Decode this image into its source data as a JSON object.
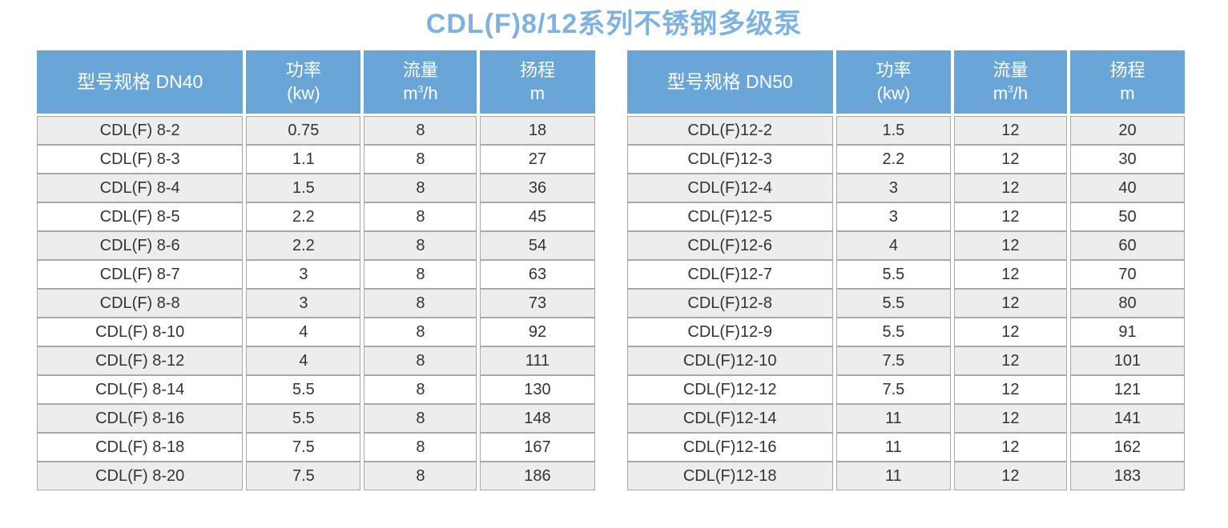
{
  "page": {
    "title": "CDL(F)8/12系列不锈钢多级泵"
  },
  "colors": {
    "header_bg": "#6aa5d8",
    "title_text": "#7fb2e0",
    "row_stripe": "#ededee",
    "border": "#a8a8a8",
    "cell_text": "#333333"
  },
  "tables": [
    {
      "name": "DN40",
      "headers": {
        "model": "型号规格 DN40",
        "power_name": "功率",
        "power_unit": "(kw)",
        "flow_name": "流量",
        "flow_unit_base": "m",
        "flow_unit_sup": "3",
        "flow_unit_rest": "/h",
        "head_name": "扬程",
        "head_unit": "m"
      },
      "rows": [
        {
          "model": "CDL(F) 8-2",
          "power": "0.75",
          "flow": "8",
          "head": "18"
        },
        {
          "model": "CDL(F) 8-3",
          "power": "1.1",
          "flow": "8",
          "head": "27"
        },
        {
          "model": "CDL(F) 8-4",
          "power": "1.5",
          "flow": "8",
          "head": "36"
        },
        {
          "model": "CDL(F) 8-5",
          "power": "2.2",
          "flow": "8",
          "head": "45"
        },
        {
          "model": "CDL(F) 8-6",
          "power": "2.2",
          "flow": "8",
          "head": "54"
        },
        {
          "model": "CDL(F) 8-7",
          "power": "3",
          "flow": "8",
          "head": "63"
        },
        {
          "model": "CDL(F) 8-8",
          "power": "3",
          "flow": "8",
          "head": "73"
        },
        {
          "model": "CDL(F) 8-10",
          "power": "4",
          "flow": "8",
          "head": "92"
        },
        {
          "model": "CDL(F) 8-12",
          "power": "4",
          "flow": "8",
          "head": "111"
        },
        {
          "model": "CDL(F) 8-14",
          "power": "5.5",
          "flow": "8",
          "head": "130"
        },
        {
          "model": "CDL(F) 8-16",
          "power": "5.5",
          "flow": "8",
          "head": "148"
        },
        {
          "model": "CDL(F) 8-18",
          "power": "7.5",
          "flow": "8",
          "head": "167"
        },
        {
          "model": "CDL(F) 8-20",
          "power": "7.5",
          "flow": "8",
          "head": "186"
        }
      ]
    },
    {
      "name": "DN50",
      "headers": {
        "model": "型号规格 DN50",
        "power_name": "功率",
        "power_unit": "(kw)",
        "flow_name": "流量",
        "flow_unit_base": "m",
        "flow_unit_sup": "3",
        "flow_unit_rest": "/h",
        "head_name": "扬程",
        "head_unit": "m"
      },
      "rows": [
        {
          "model": "CDL(F)12-2",
          "power": "1.5",
          "flow": "12",
          "head": "20"
        },
        {
          "model": "CDL(F)12-3",
          "power": "2.2",
          "flow": "12",
          "head": "30"
        },
        {
          "model": "CDL(F)12-4",
          "power": "3",
          "flow": "12",
          "head": "40"
        },
        {
          "model": "CDL(F)12-5",
          "power": "3",
          "flow": "12",
          "head": "50"
        },
        {
          "model": "CDL(F)12-6",
          "power": "4",
          "flow": "12",
          "head": "60"
        },
        {
          "model": "CDL(F)12-7",
          "power": "5.5",
          "flow": "12",
          "head": "70"
        },
        {
          "model": "CDL(F)12-8",
          "power": "5.5",
          "flow": "12",
          "head": "80"
        },
        {
          "model": "CDL(F)12-9",
          "power": "5.5",
          "flow": "12",
          "head": "91"
        },
        {
          "model": "CDL(F)12-10",
          "power": "7.5",
          "flow": "12",
          "head": "101"
        },
        {
          "model": "CDL(F)12-12",
          "power": "7.5",
          "flow": "12",
          "head": "121"
        },
        {
          "model": "CDL(F)12-14",
          "power": "11",
          "flow": "12",
          "head": "141"
        },
        {
          "model": "CDL(F)12-16",
          "power": "11",
          "flow": "12",
          "head": "162"
        },
        {
          "model": "CDL(F)12-18",
          "power": "11",
          "flow": "12",
          "head": "183"
        }
      ]
    }
  ]
}
